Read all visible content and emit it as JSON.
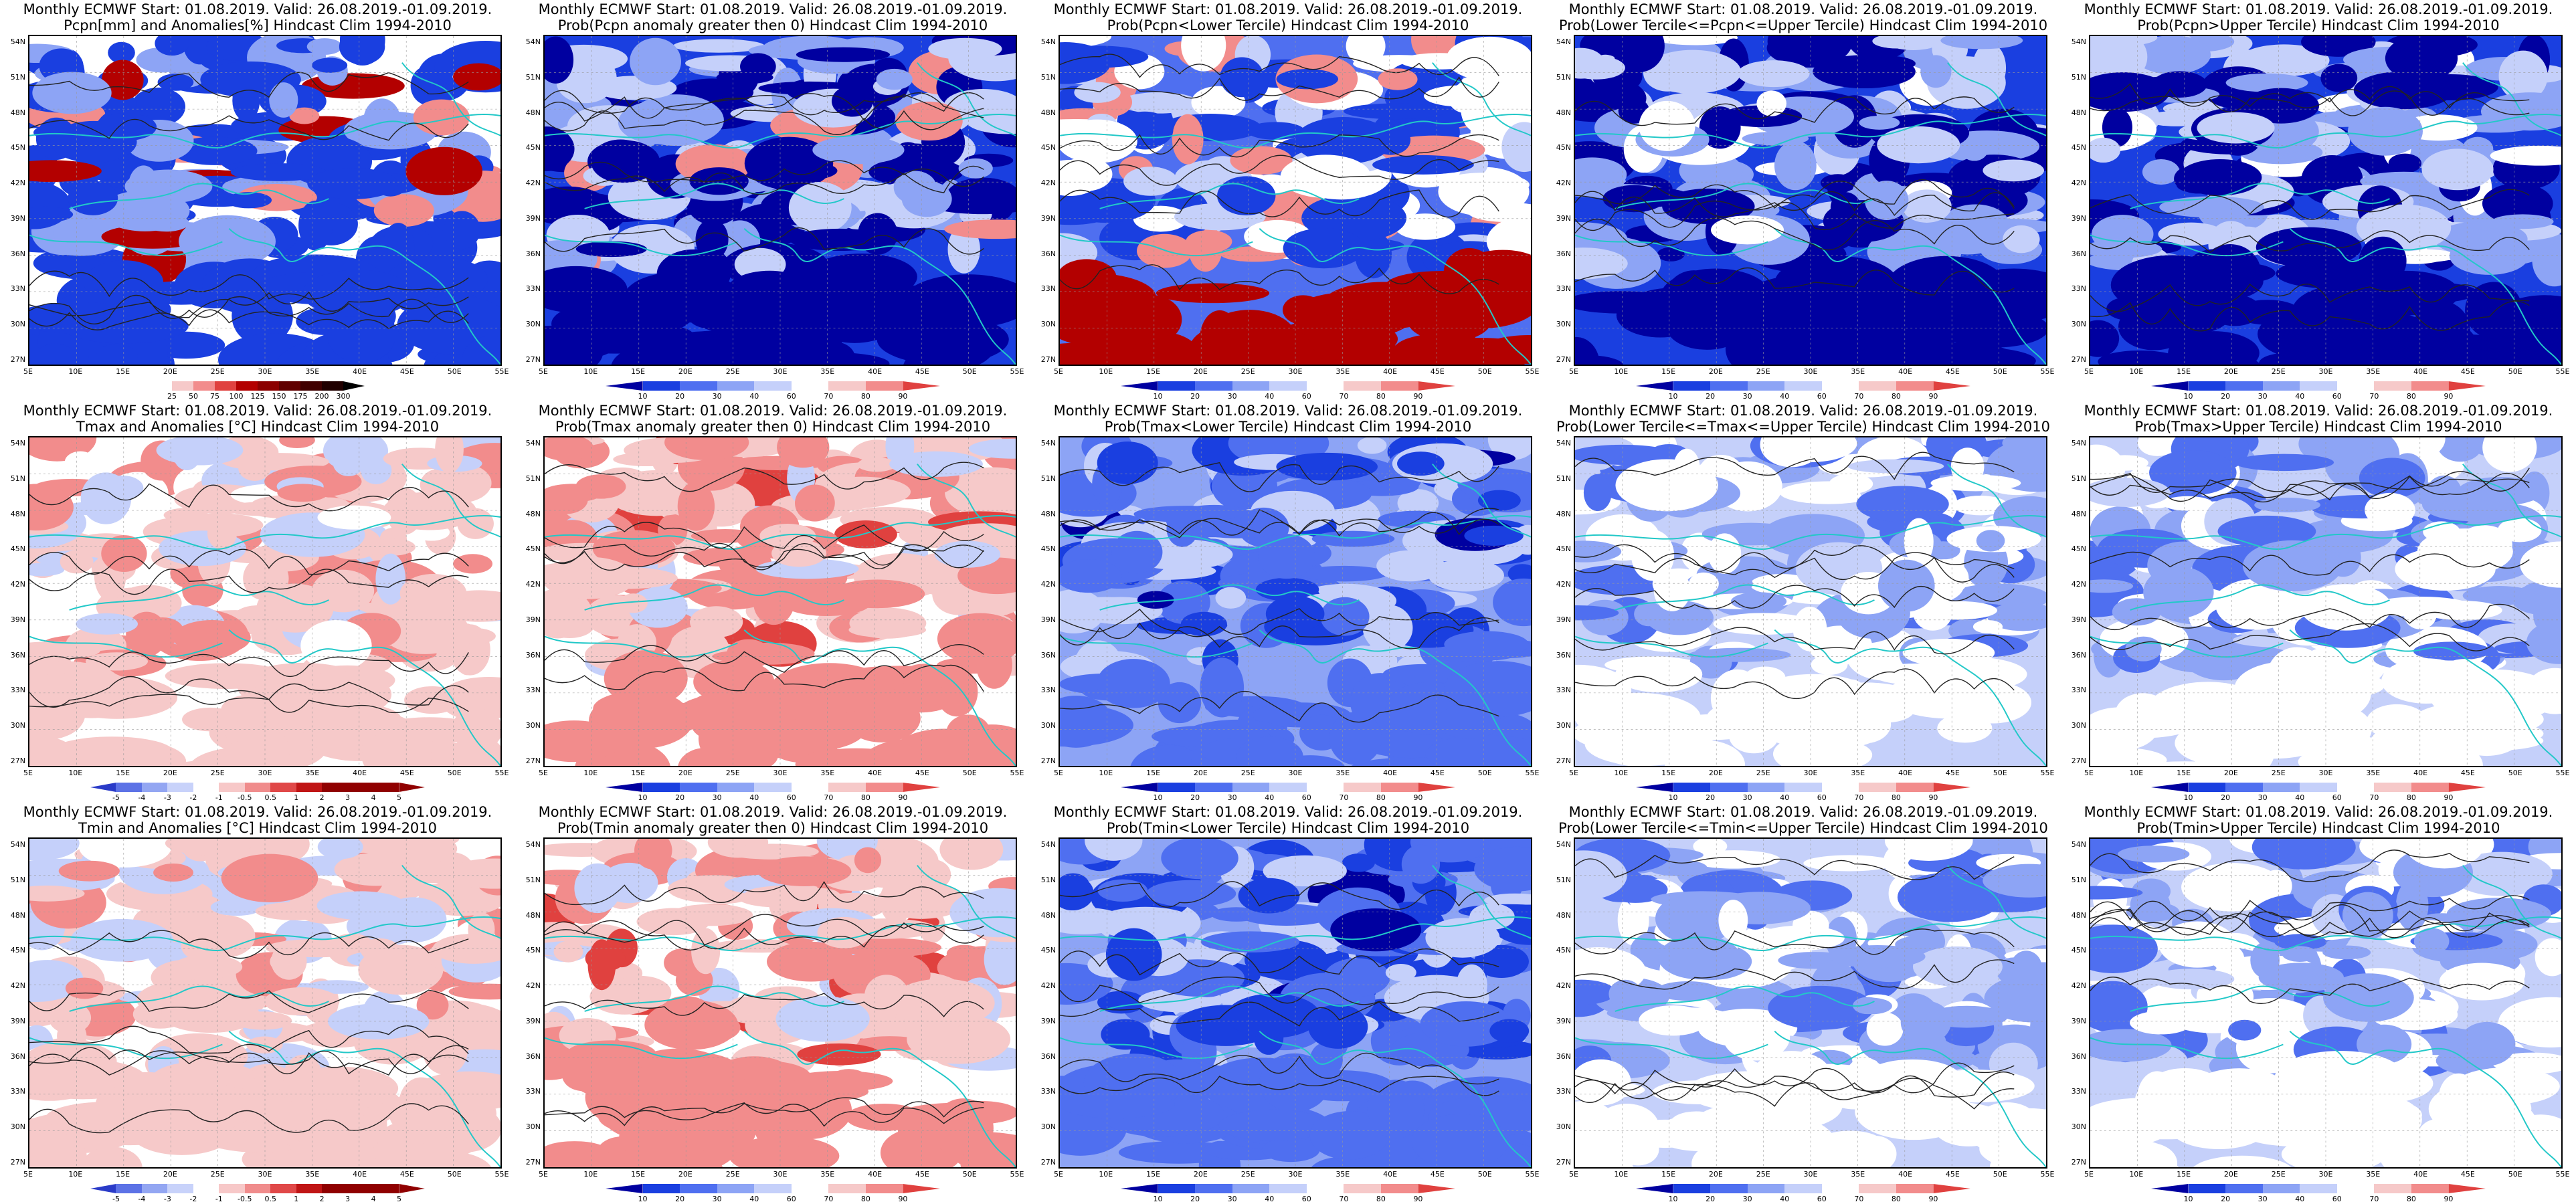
{
  "colors": {
    "coast": "#22c8c8",
    "contour": "#222222",
    "palette_prob": [
      "#0000a0",
      "#1a3fe0",
      "#4f6ff0",
      "#8da4f5",
      "#c5d0fa",
      "#ffffff",
      "#f6c9c9",
      "#f28c8c",
      "#e0413f",
      "#b30000",
      "#8b0000"
    ],
    "palette_anom": [
      "#2a3bc8",
      "#5c72e6",
      "#93a6f2",
      "#c8d2fa",
      "#ffffff",
      "#f7c8c8",
      "#f08c8c",
      "#e04848",
      "#c01515",
      "#900000"
    ]
  },
  "axes": {
    "lat_labels": [
      "54N",
      "51N",
      "48N",
      "45N",
      "42N",
      "39N",
      "36N",
      "33N",
      "30N",
      "27N"
    ],
    "lon_labels": [
      "5E",
      "10E",
      "15E",
      "20E",
      "25E",
      "30E",
      "35E",
      "40E",
      "45E",
      "50E",
      "55E"
    ]
  },
  "title_line1": "Monthly ECMWF Start: 01.08.2019. Valid: 26.08.2019.-01.09.2019.",
  "colorbars": {
    "pcpn_anom": [
      "25",
      "50",
      "75",
      "100",
      "125",
      "150",
      "175",
      "200",
      "300"
    ],
    "temp_anom": [
      "-5",
      "-4",
      "-3",
      "-2",
      "-1",
      "-0.5",
      "0.5",
      "1",
      "2",
      "3",
      "4",
      "5"
    ],
    "prob": [
      "10",
      "20",
      "30",
      "40",
      "60",
      "70",
      "80",
      "90"
    ]
  },
  "panels": [
    {
      "title2": "Pcpn[mm] and Anomalies[%] Hindcast Clim 1994-2010",
      "cbar": "pcpn_anom",
      "theme": "pcpn_anom"
    },
    {
      "title2": "Prob(Pcpn anomaly greater then 0) Hindcast Clim 1994-2010",
      "cbar": "prob",
      "theme": "blue_strong"
    },
    {
      "title2": "Prob(Pcpn<Lower Tercile) Hindcast Clim 1994-2010",
      "cbar": "prob",
      "theme": "red_south"
    },
    {
      "title2": "Prob(Lower Tercile<=Pcpn<=Upper Tercile) Hindcast Clim 1994-2010",
      "cbar": "prob",
      "theme": "blue_strong2"
    },
    {
      "title2": "Prob(Pcpn>Upper Tercile) Hindcast Clim 1994-2010",
      "cbar": "prob",
      "theme": "blue_strong2"
    },
    {
      "title2": "Tmax and Anomalies [°C] Hindcast Clim 1994-2010",
      "cbar": "temp_anom",
      "theme": "warm_light"
    },
    {
      "title2": "Prob(Tmax anomaly greater then 0) Hindcast Clim 1994-2010",
      "cbar": "prob",
      "theme": "warm"
    },
    {
      "title2": "Prob(Tmax<Lower Tercile) Hindcast Clim 1994-2010",
      "cbar": "prob",
      "theme": "blue_mid"
    },
    {
      "title2": "Prob(Lower Tercile<=Tmax<=Upper Tercile) Hindcast Clim 1994-2010",
      "cbar": "prob",
      "theme": "blue_light"
    },
    {
      "title2": "Prob(Tmax>Upper Tercile) Hindcast Clim 1994-2010",
      "cbar": "prob",
      "theme": "blue_light"
    },
    {
      "title2": "Tmin and Anomalies [°C] Hindcast Clim 1994-2010",
      "cbar": "temp_anom",
      "theme": "warm_light"
    },
    {
      "title2": "Prob(Tmin anomaly greater then 0) Hindcast Clim 1994-2010",
      "cbar": "prob",
      "theme": "warm"
    },
    {
      "title2": "Prob(Tmin<Lower Tercile) Hindcast Clim 1994-2010",
      "cbar": "prob",
      "theme": "blue_mid"
    },
    {
      "title2": "Prob(Lower Tercile<=Tmin<=Upper Tercile) Hindcast Clim 1994-2010",
      "cbar": "prob",
      "theme": "blue_light"
    },
    {
      "title2": "Prob(Tmin>Upper Tercile) Hindcast Clim 1994-2010",
      "cbar": "prob",
      "theme": "blue_light"
    }
  ]
}
